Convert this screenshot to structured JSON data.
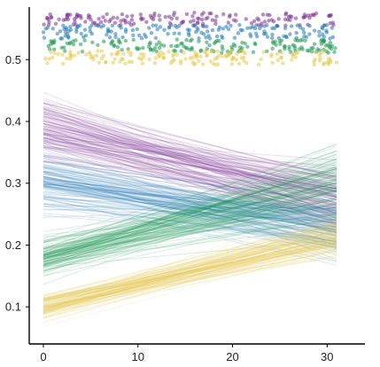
{
  "chart_data": {
    "type": "line",
    "title": "",
    "xlabel": "",
    "ylabel": "",
    "xlim": [
      -1.5,
      34
    ],
    "ylim": [
      0.04,
      0.585
    ],
    "x_ticks": [
      {
        "value": 0,
        "label": "0"
      },
      {
        "value": 10,
        "label": "10"
      },
      {
        "value": 20,
        "label": "20"
      },
      {
        "value": 30,
        "label": "30"
      }
    ],
    "y_ticks": [
      {
        "value": 0.1,
        "label": "0.1"
      },
      {
        "value": 0.2,
        "label": "0.2"
      },
      {
        "value": 0.3,
        "label": "0.3"
      },
      {
        "value": 0.4,
        "label": "0.4"
      },
      {
        "value": 0.5,
        "label": "0.5"
      }
    ],
    "grid": false,
    "legend": "none",
    "line_x_range": [
      0,
      31
    ],
    "lines_per_series": 110,
    "series": [
      {
        "color": "#7b3294",
        "start_mean": 0.39,
        "start_spread": 0.045,
        "end_mean": 0.27,
        "end_spread": 0.045,
        "rug_y": 0.565
      },
      {
        "color": "#1f78b4",
        "start_mean": 0.3,
        "start_spread": 0.04,
        "end_mean": 0.23,
        "end_spread": 0.045,
        "rug_y": 0.545
      },
      {
        "color": "#1a9850",
        "start_mean": 0.18,
        "start_spread": 0.025,
        "end_mean": 0.3,
        "end_spread": 0.045,
        "rug_y": 0.522
      },
      {
        "color": "#e6c84f",
        "start_mean": 0.1,
        "start_spread": 0.02,
        "end_mean": 0.21,
        "end_spread": 0.03,
        "rug_y": 0.503
      }
    ],
    "rug_x_range": [
      0,
      31
    ],
    "rug_points_per_series": 160
  }
}
